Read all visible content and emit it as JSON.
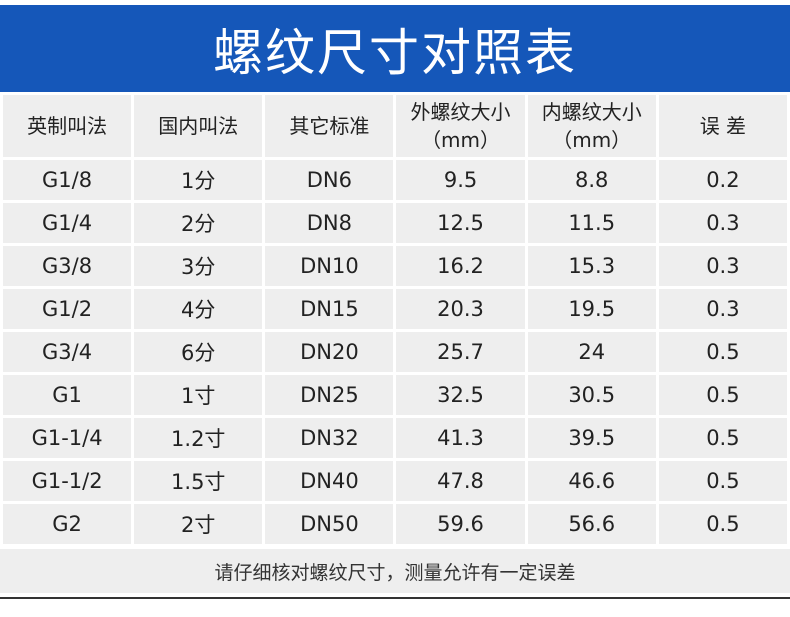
{
  "title": "螺纹尺寸对照表",
  "headers": [
    "英制叫法",
    "国内叫法",
    "其它标准",
    "外螺纹大小\n（mm）",
    "内螺纹大小\n（mm）",
    "误 差"
  ],
  "rows": [
    [
      "G1/8",
      "1分",
      "DN6",
      "9.5",
      "8.8",
      "0.2"
    ],
    [
      "G1/4",
      "2分",
      "DN8",
      "12.5",
      "11.5",
      "0.3"
    ],
    [
      "G3/8",
      "3分",
      "DN10",
      "16.2",
      "15.3",
      "0.3"
    ],
    [
      "G1/2",
      "4分",
      "DN15",
      "20.3",
      "19.5",
      "0.3"
    ],
    [
      "G3/4",
      "6分",
      "DN20",
      "25.7",
      "24",
      "0.5"
    ],
    [
      "G1",
      "1寸",
      "DN25",
      "32.5",
      "30.5",
      "0.5"
    ],
    [
      "G1-1/4",
      "1.2寸",
      "DN32",
      "41.3",
      "39.5",
      "0.5"
    ],
    [
      "G1-1/2",
      "1.5寸",
      "DN40",
      "47.8",
      "46.6",
      "0.5"
    ],
    [
      "G2",
      "2寸",
      "DN50",
      "59.6",
      "56.6",
      "0.5"
    ]
  ],
  "note": "请仔细核对螺纹尺寸，测量允许有一定误差",
  "colors": {
    "banner": "#1557b9",
    "cell": "#eeeeee"
  }
}
